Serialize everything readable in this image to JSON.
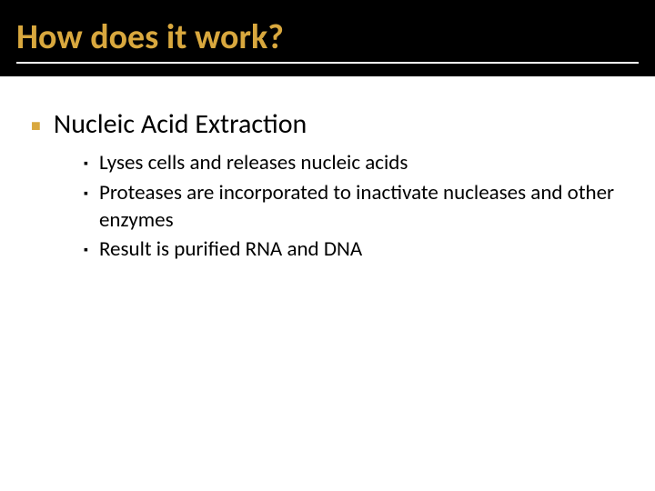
{
  "slide": {
    "title": "How does it work?",
    "title_color": "#d9a83e",
    "header_bg": "#000000",
    "body_bg": "#ffffff",
    "level1_bullet_color": "#d9a83e",
    "level2_bullet_color": "#000000",
    "text_color": "#000000",
    "title_fontsize": 38,
    "level1_fontsize": 30,
    "level2_fontsize": 23,
    "bullets": {
      "level1": "Nucleic Acid Extraction",
      "level2": [
        "Lyses cells and releases nucleic acids",
        "Proteases are incorporated to inactivate nucleases and other enzymes",
        "Result is purified RNA and DNA"
      ]
    }
  }
}
